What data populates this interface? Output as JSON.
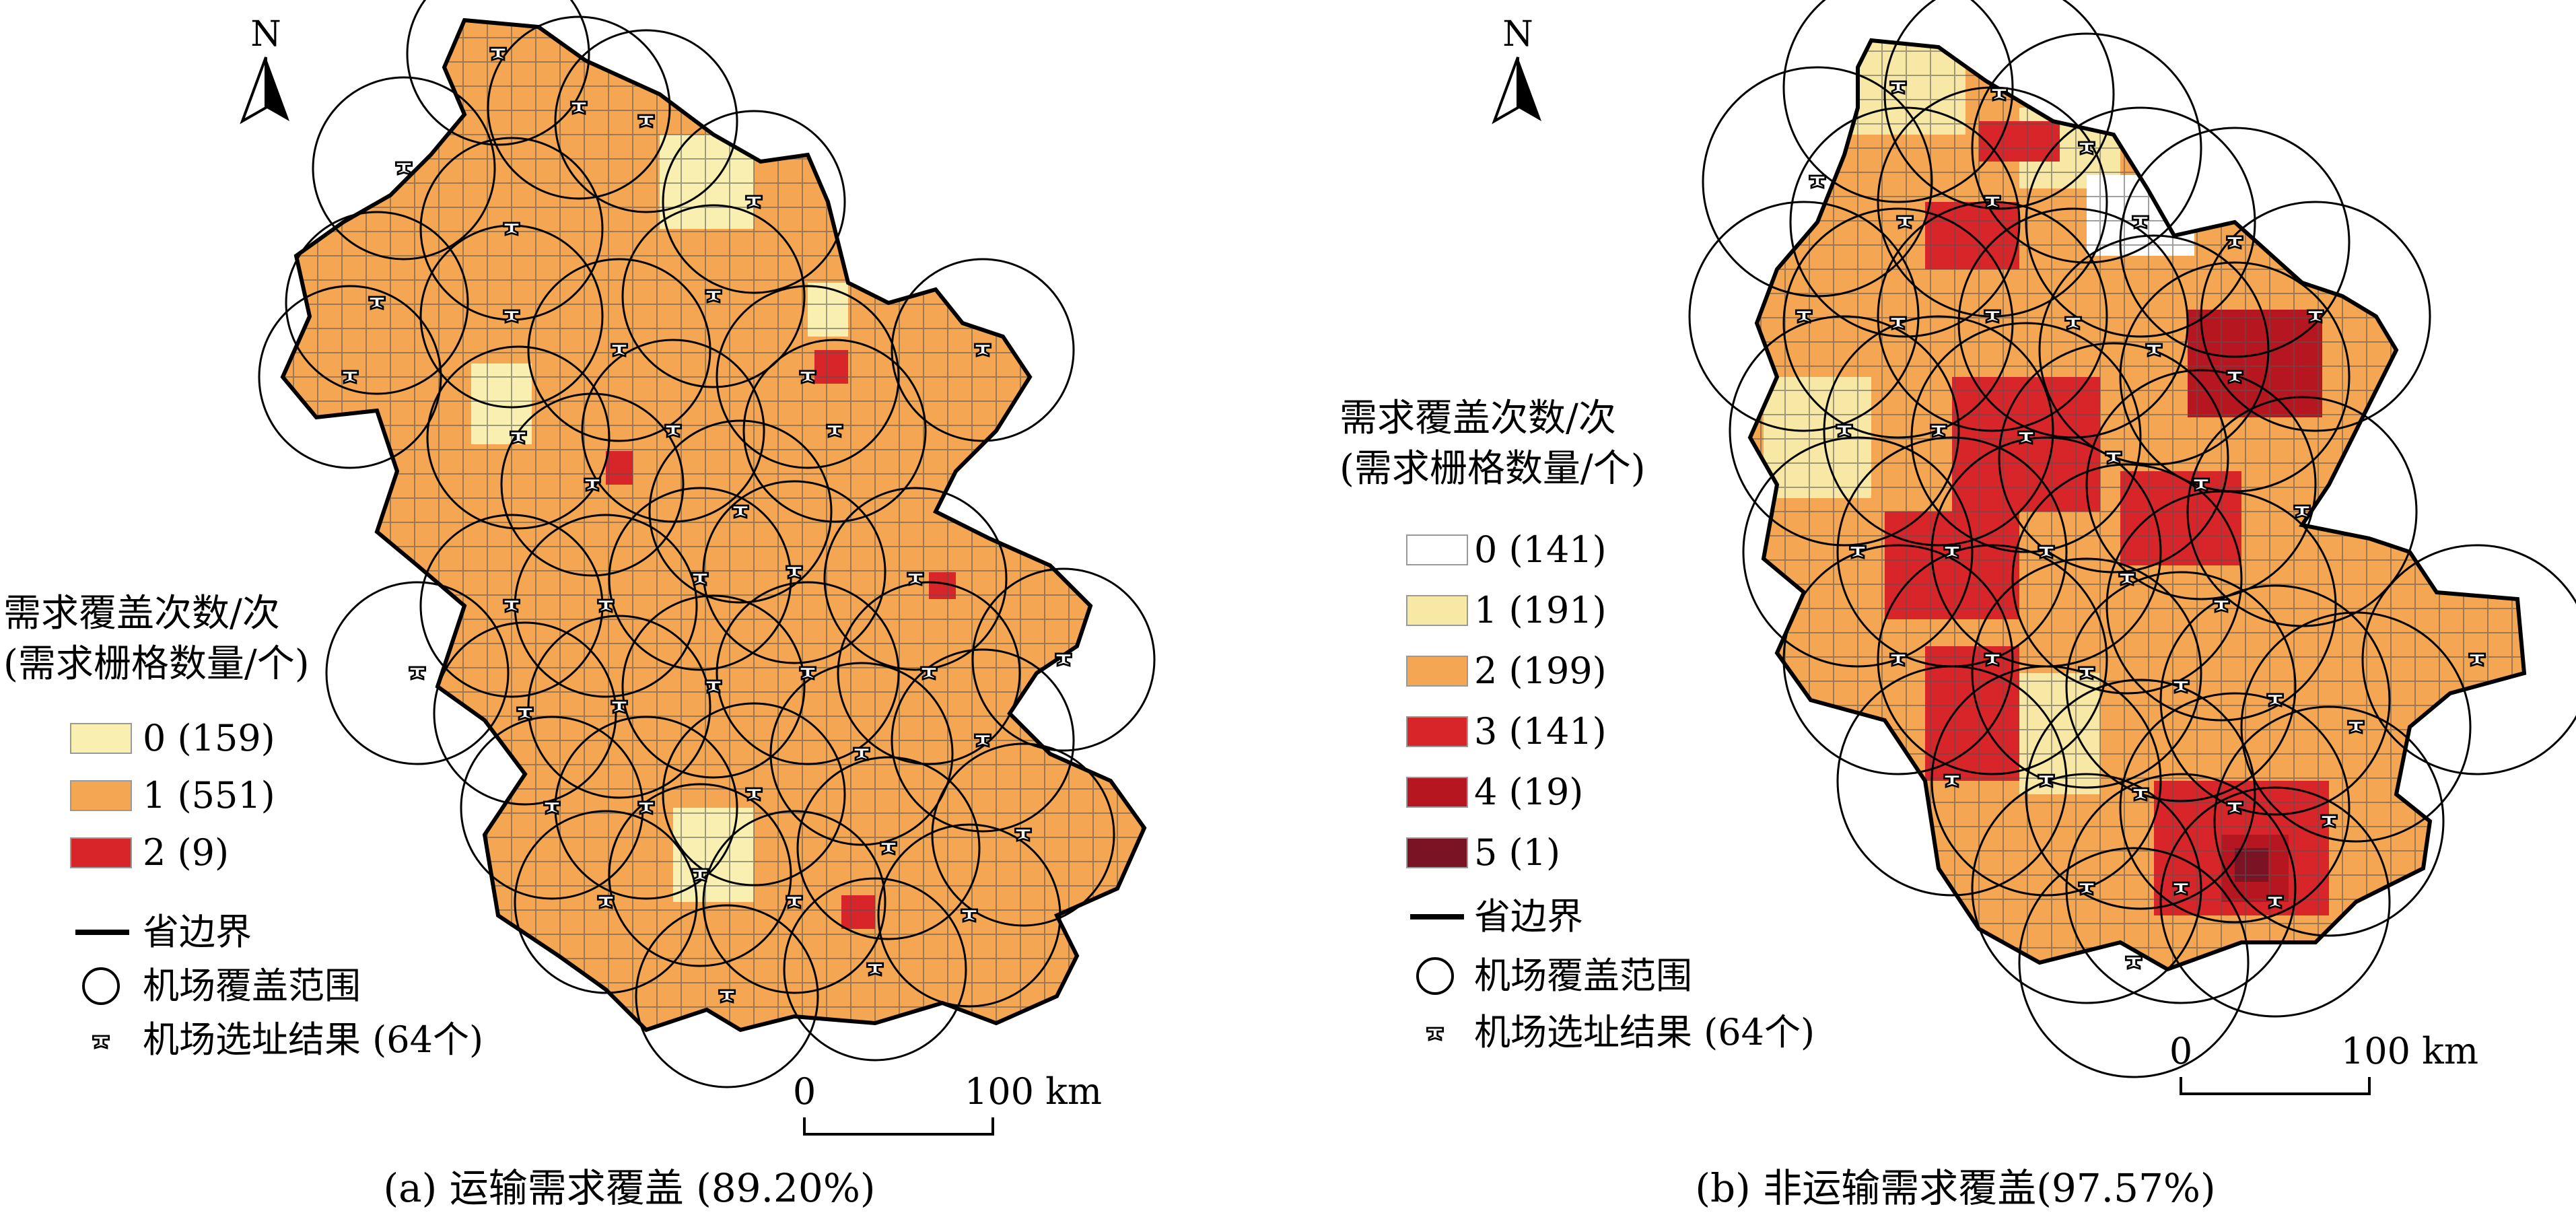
{
  "panels": [
    {
      "id": "a",
      "caption": "(a) 运输需求覆盖 (89.20%)",
      "legend": {
        "title_line1": "需求覆盖次数/次",
        "title_line2": "(需求栅格数量/个)",
        "classes": [
          {
            "label": "0 (159)",
            "color": "#f8efb0"
          },
          {
            "label": "1 (551)",
            "color": "#f4a652"
          },
          {
            "label": "2 (9)",
            "color": "#d8252a"
          }
        ],
        "boundary_label": "省边界",
        "coverage_label": "机场覆盖范围",
        "airport_label": "机场选址结果 (64个)"
      },
      "scale": {
        "start": "0",
        "end": "100 km"
      },
      "north": "N"
    },
    {
      "id": "b",
      "caption": "(b) 非运输需求覆盖(97.57%)",
      "legend": {
        "title_line1": "需求覆盖次数/次",
        "title_line2": "(需求栅格数量/个)",
        "classes": [
          {
            "label": "0 (141)",
            "color": "#ffffff"
          },
          {
            "label": "1 (191)",
            "color": "#f8e8a6"
          },
          {
            "label": "2 (199)",
            "color": "#f4a652"
          },
          {
            "label": "3 (141)",
            "color": "#d8252a"
          },
          {
            "label": "4 (19)",
            "color": "#b5161f"
          },
          {
            "label": "5 (1)",
            "color": "#7a1424"
          }
        ],
        "boundary_label": "省边界",
        "coverage_label": "机场覆盖范围",
        "airport_label": "机场选址结果 (64个)"
      },
      "scale": {
        "start": "0",
        "end": "100 km"
      },
      "north": "N"
    }
  ],
  "colors": {
    "boundary": "#000000",
    "grid_line": "#888888"
  }
}
